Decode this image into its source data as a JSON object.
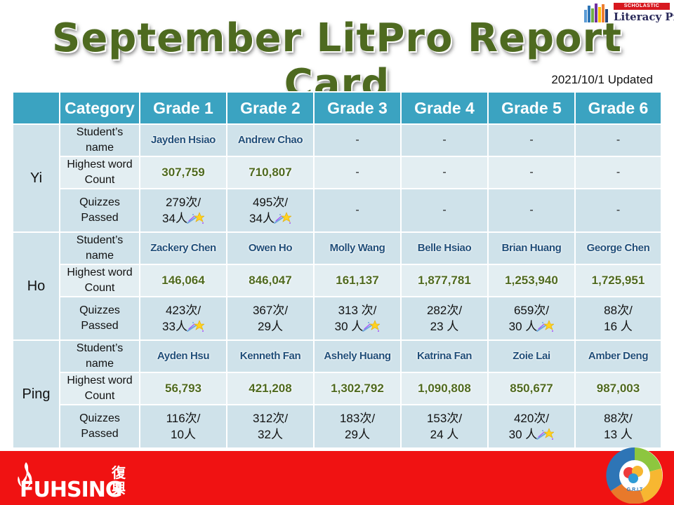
{
  "header": {
    "title": "September LitPro Report Card",
    "updated": "2021/10/1 Updated",
    "brand_tag": "SCHOLASTIC",
    "brand_name": "Literacy Pro"
  },
  "table": {
    "columns": [
      "",
      "Category",
      "Grade 1",
      "Grade 2",
      "Grade 3",
      "Grade 4",
      "Grade 5",
      "Grade 6"
    ],
    "category_labels": {
      "name": [
        "Student’s",
        "name"
      ],
      "word": [
        "Highest word",
        "Count"
      ],
      "quiz": [
        "Quizzes",
        "Passed"
      ]
    },
    "houses": [
      {
        "name": "Yi",
        "students": [
          "Jayden Hsiao",
          "Andrew Chao",
          "-",
          "-",
          "-",
          "-"
        ],
        "word_counts": [
          "307,759",
          "710,807",
          "-",
          "-",
          "-",
          "-"
        ],
        "quizzes": [
          {
            "times": "279次/",
            "people": "34人",
            "star": true
          },
          {
            "times": "495次/",
            "people": "34人",
            "star": true
          },
          {
            "dash": "-"
          },
          {
            "dash": "-"
          },
          {
            "dash": "-"
          },
          {
            "dash": "-"
          }
        ]
      },
      {
        "name": "Ho",
        "students": [
          "Zackery Chen",
          "Owen Ho",
          "Molly Wang",
          "Belle Hsiao",
          "Brian Huang",
          "George Chen"
        ],
        "word_counts": [
          "146,064",
          "846,047",
          "161,137",
          "1,877,781",
          "1,253,940",
          "1,725,951"
        ],
        "quizzes": [
          {
            "times": "423次/",
            "people": "33人",
            "star": true
          },
          {
            "times": "367次/",
            "people": "29人",
            "star": false
          },
          {
            "times": "313 次/",
            "people": "30 人",
            "star": true
          },
          {
            "times": "282次/",
            "people": "23 人",
            "star": false
          },
          {
            "times": "659次/",
            "people": "30 人",
            "star": true
          },
          {
            "times": "88次/",
            "people": "16 人",
            "star": false
          }
        ]
      },
      {
        "name": "Ping",
        "students": [
          "Ayden Hsu",
          "Kenneth Fan",
          "Ashely Huang",
          "Katrina Fan",
          "Zoie Lai",
          "Amber Deng"
        ],
        "word_counts": [
          "56,793",
          "421,208",
          "1,302,792",
          "1,090,808",
          "850,677",
          "987,003"
        ],
        "quizzes": [
          {
            "times": "116次/",
            "people": "10人",
            "star": false
          },
          {
            "times": "312次/",
            "people": "32人",
            "star": false
          },
          {
            "times": "183次/",
            "people": "29人",
            "star": false
          },
          {
            "times": "153次/",
            "people": "24 人",
            "star": false
          },
          {
            "times": "420次/",
            "people": "30 人",
            "star": true
          },
          {
            "times": "88次/",
            "people": "13 人",
            "star": false
          }
        ]
      }
    ]
  },
  "footer": {
    "logo_text": "FUHSING",
    "logo_cn": "復興",
    "grit_label": "G.R.I.T"
  },
  "icons": [
    "shooting-star-icon",
    "flame-logo-icon",
    "bookshelf-icon",
    "grit-badge-icon"
  ],
  "colors": {
    "title": "#4e6a20",
    "header_bg": "#3ba3c1",
    "student_name": "#1f4e79",
    "word_count": "#4e6a20",
    "footer": "#f01212"
  }
}
